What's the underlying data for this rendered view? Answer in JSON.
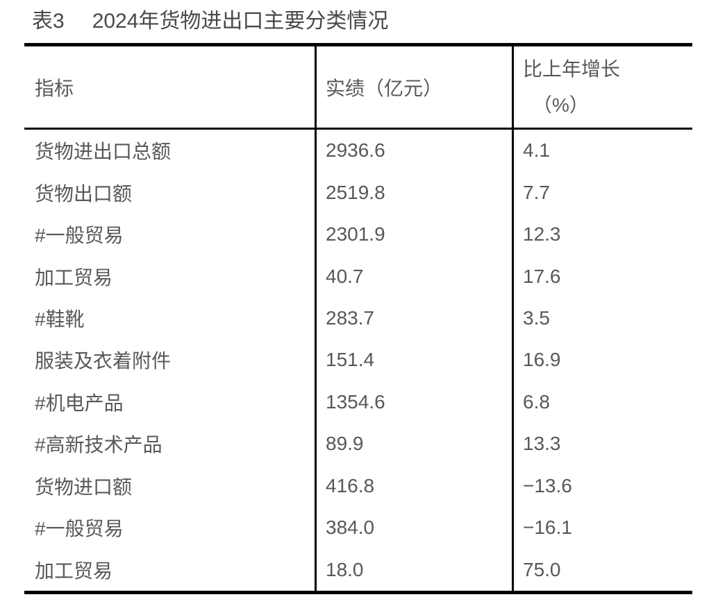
{
  "title": {
    "label": "表3",
    "text": "2024年货物进出口主要分类情况"
  },
  "table": {
    "header": {
      "indicator": "指标",
      "value": "实绩（亿元）",
      "growth_line1": "比上年增长",
      "growth_line2": "（%）"
    },
    "rows": [
      {
        "indicator": "货物进出口总额",
        "value": "2936.6",
        "growth": "4.1"
      },
      {
        "indicator": "货物出口额",
        "value": "2519.8",
        "growth": "7.7"
      },
      {
        "indicator": "#一般贸易",
        "value": "2301.9",
        "growth": "12.3"
      },
      {
        "indicator": "加工贸易",
        "value": "40.7",
        "growth": "17.6"
      },
      {
        "indicator": "#鞋靴",
        "value": "283.7",
        "growth": "3.5"
      },
      {
        "indicator": "服装及衣着附件",
        "value": "151.4",
        "growth": "16.9"
      },
      {
        "indicator": "#机电产品",
        "value": "1354.6",
        "growth": "6.8"
      },
      {
        "indicator": "#高新技术产品",
        "value": "89.9",
        "growth": "13.3"
      },
      {
        "indicator": "货物进口额",
        "value": "416.8",
        "growth": "−13.6"
      },
      {
        "indicator": "#一般贸易",
        "value": "384.0",
        "growth": "−16.1"
      },
      {
        "indicator": "加工贸易",
        "value": "18.0",
        "growth": "75.0"
      }
    ]
  },
  "colors": {
    "border": "#000000",
    "title_text": "#48484a",
    "body_text": "#58585a",
    "background": "#ffffff"
  }
}
